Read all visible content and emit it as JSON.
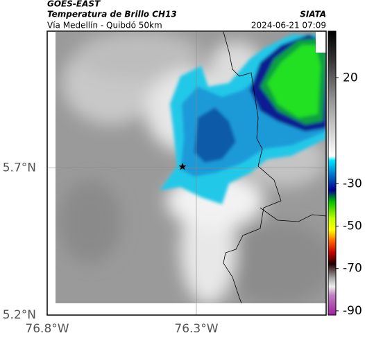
{
  "header": {
    "satellite": "GOES-EAST",
    "product": "Temperatura de Brillo CH13",
    "route": "Vía Medellín - Quibdó 50km",
    "source": "SIATA",
    "timestamp": "2024-06-21 07:09"
  },
  "map": {
    "xlim": [
      -76.8,
      -75.865
    ],
    "ylim": [
      5.2,
      6.164
    ],
    "xticks": [
      {
        "value": -76.8,
        "label": "76.8°W"
      },
      {
        "value": -76.3,
        "label": "76.3°W"
      }
    ],
    "yticks": [
      {
        "value": 5.2,
        "label": "5.2°N"
      },
      {
        "value": 5.7,
        "label": "5.7°N"
      }
    ],
    "colorbar": {
      "lim": [
        -92,
        42
      ],
      "ticks": [
        20,
        -30,
        -50,
        -70,
        -90
      ]
    }
  }
}
